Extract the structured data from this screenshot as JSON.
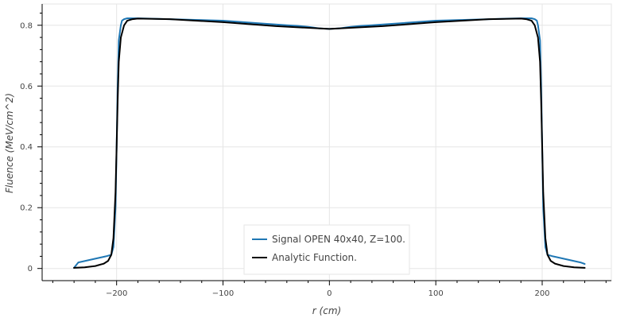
{
  "chart_data": {
    "type": "line",
    "title": "",
    "xlabel": "r (cm)",
    "ylabel": "Fluence (MeV/cm^2)",
    "xlim": [
      -270,
      265
    ],
    "ylim": [
      -0.04,
      0.87
    ],
    "x_ticks": [
      -200,
      -100,
      0,
      100,
      200
    ],
    "x_tick_labels": [
      "−200",
      "−100",
      "0",
      "100",
      "200"
    ],
    "y_ticks": [
      0,
      0.2,
      0.4,
      0.6,
      0.8
    ],
    "y_tick_labels": [
      "0",
      "0.2",
      "0.4",
      "0.6",
      "0.8"
    ],
    "grid": true,
    "legend_position": "bottom-center",
    "series": [
      {
        "name": "Signal OPEN 40x40, Z=100.",
        "color": "#1f77b4",
        "x": [
          -240,
          -236,
          -210,
          -205,
          -203,
          -201,
          -200,
          -199,
          -198,
          -196,
          -195,
          -193,
          -190,
          -180,
          -150,
          -100,
          -60,
          -40,
          -30,
          -20,
          -10,
          0,
          10,
          20,
          30,
          40,
          60,
          100,
          150,
          180,
          190,
          193,
          195,
          196,
          198,
          199,
          200,
          201,
          203,
          205,
          210,
          236,
          240
        ],
        "y": [
          0.002,
          0.02,
          0.04,
          0.045,
          0.07,
          0.2,
          0.4,
          0.6,
          0.75,
          0.8,
          0.815,
          0.82,
          0.823,
          0.823,
          0.82,
          0.815,
          0.805,
          0.8,
          0.798,
          0.795,
          0.79,
          0.788,
          0.79,
          0.795,
          0.798,
          0.8,
          0.805,
          0.815,
          0.82,
          0.823,
          0.823,
          0.82,
          0.815,
          0.8,
          0.75,
          0.6,
          0.4,
          0.2,
          0.07,
          0.045,
          0.04,
          0.02,
          0.015
        ]
      },
      {
        "name": "Analytic Function.",
        "color": "#000000",
        "x": [
          -240,
          -230,
          -220,
          -212,
          -208,
          -205,
          -203,
          -201,
          -200,
          -199,
          -198,
          -196,
          -193,
          -190,
          -185,
          -180,
          -150,
          -100,
          -50,
          0,
          50,
          100,
          150,
          180,
          185,
          190,
          193,
          196,
          198,
          199,
          200,
          201,
          203,
          205,
          208,
          212,
          220,
          230,
          240
        ],
        "y": [
          0.002,
          0.004,
          0.008,
          0.016,
          0.025,
          0.045,
          0.1,
          0.25,
          0.4,
          0.55,
          0.68,
          0.76,
          0.8,
          0.815,
          0.82,
          0.822,
          0.82,
          0.81,
          0.797,
          0.788,
          0.797,
          0.81,
          0.82,
          0.822,
          0.82,
          0.815,
          0.8,
          0.76,
          0.68,
          0.55,
          0.4,
          0.25,
          0.1,
          0.045,
          0.025,
          0.016,
          0.008,
          0.004,
          0.002
        ]
      }
    ]
  }
}
